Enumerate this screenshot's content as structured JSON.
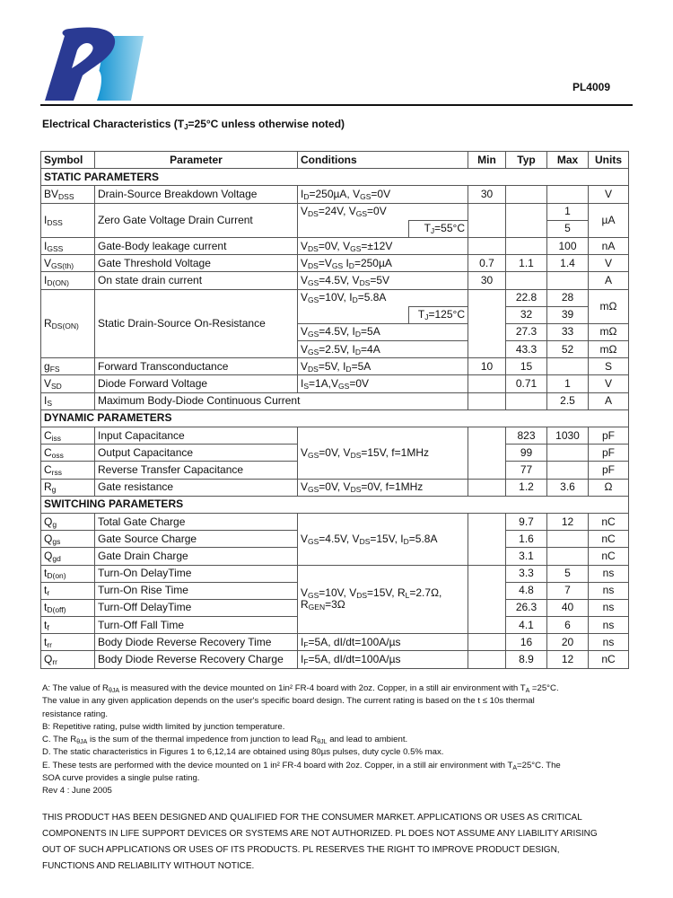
{
  "header": {
    "part_number": "PL4009",
    "logo_text": "PL",
    "brand_colors": {
      "dark": "#2a3a93",
      "light": "#1aa0d8"
    }
  },
  "title": {
    "pre": "Electrical Characteristics (T",
    "sub": "J",
    "post": "=25°C unless otherwise noted)"
  },
  "table": {
    "headers": {
      "symbol": "Symbol",
      "parameter": "Parameter",
      "conditions": "Conditions",
      "min": "Min",
      "typ": "Typ",
      "max": "Max",
      "units": "Units"
    },
    "sections": {
      "static": "STATIC PARAMETERS",
      "dynamic": "DYNAMIC PARAMETERS",
      "switching": "SWITCHING PARAMETERS"
    },
    "rows": {
      "bvdss": {
        "symbol": [
          "BV",
          "DSS"
        ],
        "parameter": "Drain-Source Breakdown Voltage",
        "conditions": [
          "I",
          "D",
          "=250µA, V",
          "GS",
          "=0V"
        ],
        "min": "30",
        "typ": "",
        "max": "",
        "units": "V"
      },
      "idss": {
        "symbol": [
          "I",
          "DSS"
        ],
        "parameter": "Zero Gate Voltage Drain Current",
        "conditions": [
          "V",
          "DS",
          "=24V, V",
          "GS",
          "=0V"
        ],
        "conditions_2": [
          "T",
          "J",
          "=55°C"
        ],
        "max": "1",
        "max_2": "5",
        "units": "µA"
      },
      "igss": {
        "symbol": [
          "I",
          "GSS"
        ],
        "parameter": "Gate-Body leakage current",
        "conditions": [
          "V",
          "DS",
          "=0V, V",
          "GS",
          "=±12V"
        ],
        "min": "",
        "typ": "",
        "max": "100",
        "units": "nA"
      },
      "vgsth": {
        "symbol": [
          "V",
          "GS(th)"
        ],
        "parameter": "Gate Threshold Voltage",
        "conditions": [
          "V",
          "DS",
          "=V",
          "GS",
          " I",
          "D",
          "=250µA"
        ],
        "min": "0.7",
        "typ": "1.1",
        "max": "1.4",
        "units": "V"
      },
      "idon": {
        "symbol": [
          "I",
          "D(ON)"
        ],
        "parameter": "On state drain current",
        "conditions": [
          "V",
          "GS",
          "=4.5V, V",
          "DS",
          "=5V"
        ],
        "min": "30",
        "typ": "",
        "max": "",
        "units": "A"
      },
      "rdson": {
        "symbol": [
          "R",
          "DS(ON)"
        ],
        "parameter": "Static Drain-Source On-Resistance",
        "conditions": [
          "V",
          "GS",
          "=10V, I",
          "D",
          "=5.8A"
        ],
        "conditions_2": [
          "T",
          "J",
          "=125°C"
        ],
        "conditions_3": [
          "V",
          "GS",
          "=4.5V, I",
          "D",
          "=5A"
        ],
        "conditions_4": [
          "V",
          "GS",
          "=2.5V, I",
          "D",
          "=4A"
        ],
        "typ": [
          "22.8",
          "32",
          "27.3",
          "43.3"
        ],
        "max": [
          "28",
          "39",
          "33",
          "52"
        ],
        "units": [
          "mΩ",
          "mΩ",
          "mΩ"
        ]
      },
      "gfs": {
        "symbol": [
          "g",
          "FS"
        ],
        "parameter": "Forward Transconductance",
        "conditions": [
          "V",
          "DS",
          "=5V, I",
          "D",
          "=5A"
        ],
        "min": "10",
        "typ": "15",
        "max": "",
        "units": "S"
      },
      "vsd": {
        "symbol": [
          "V",
          "SD"
        ],
        "parameter": "Diode Forward Voltage",
        "conditions": [
          "I",
          "S",
          "=1A,V",
          "GS",
          "=0V"
        ],
        "min": "",
        "typ": "0.71",
        "max": "1",
        "units": "V"
      },
      "is": {
        "symbol": [
          "I",
          "S"
        ],
        "parameter": "Maximum Body-Diode Continuous Current",
        "min": "",
        "typ": "",
        "max": "2.5",
        "units": "A"
      },
      "ciss": {
        "symbol": [
          "C",
          "iss"
        ],
        "parameter": "Input Capacitance",
        "typ": "823",
        "max": "1030",
        "units": "pF"
      },
      "coss": {
        "symbol": [
          "C",
          "oss"
        ],
        "parameter": "Output Capacitance",
        "typ": "99",
        "max": "",
        "units": "pF"
      },
      "crss": {
        "symbol": [
          "C",
          "rss"
        ],
        "parameter": "Reverse Transfer Capacitance",
        "typ": "77",
        "max": "",
        "units": "pF"
      },
      "cap_conditions": [
        "V",
        "GS",
        "=0V, V",
        "DS",
        "=15V, f=1MHz"
      ],
      "rg": {
        "symbol": [
          "R",
          "g"
        ],
        "parameter": "Gate resistance",
        "conditions": [
          "V",
          "GS",
          "=0V, V",
          "DS",
          "=0V, f=1MHz"
        ],
        "min": "",
        "typ": "1.2",
        "max": "3.6",
        "units": "Ω"
      },
      "qg": {
        "symbol": [
          "Q",
          "g"
        ],
        "parameter": "Total Gate Charge",
        "typ": "9.7",
        "max": "12",
        "units": "nC"
      },
      "qgs": {
        "symbol": [
          "Q",
          "gs"
        ],
        "parameter": "Gate Source Charge",
        "typ": "1.6",
        "max": "",
        "units": "nC"
      },
      "qgd": {
        "symbol": [
          "Q",
          "gd"
        ],
        "parameter": "Gate Drain Charge",
        "typ": "3.1",
        "max": "",
        "units": "nC"
      },
      "charge_conditions": [
        "V",
        "GS",
        "=4.5V, V",
        "DS",
        "=15V, I",
        "D",
        "=5.8A"
      ],
      "tdon": {
        "symbol": [
          "t",
          "D(on)"
        ],
        "parameter": "Turn-On DelayTime",
        "typ": "3.3",
        "max": "5",
        "units": "ns"
      },
      "tr": {
        "symbol": [
          "t",
          "r"
        ],
        "parameter": "Turn-On Rise Time",
        "typ": "4.8",
        "max": "7",
        "units": "ns"
      },
      "tdoff": {
        "symbol": [
          "t",
          "D(off)"
        ],
        "parameter": "Turn-Off DelayTime",
        "typ": "26.3",
        "max": "40",
        "units": "ns"
      },
      "tf": {
        "symbol": [
          "t",
          "f"
        ],
        "parameter": "Turn-Off Fall Time",
        "typ": "4.1",
        "max": "6",
        "units": "ns"
      },
      "switch_conditions": [
        "V",
        "GS",
        "=10V, V",
        "DS",
        "=15V, R",
        "L",
        "=2.7Ω,"
      ],
      "switch_conditions_2": [
        "R",
        "GEN",
        "=3Ω"
      ],
      "trr": {
        "symbol": [
          "t",
          "rr"
        ],
        "parameter": "Body Diode Reverse Recovery Time",
        "conditions": [
          "I",
          "F",
          "=5A, dI/dt=100A/µs"
        ],
        "typ": "16",
        "max": "20",
        "units": "ns"
      },
      "qrr": {
        "symbol": [
          "Q",
          "rr"
        ],
        "parameter": "Body Diode Reverse Recovery Charge",
        "conditions": [
          "I",
          "F",
          "=5A, dI/dt=100A/µs"
        ],
        "typ": "8.9",
        "max": "12",
        "units": "nC"
      }
    }
  },
  "notes": {
    "a": [
      "A: The value of R",
      "θJA",
      " is measured with the device mounted on 1in² FR-4 board with 2oz. Copper, in a still air environment with T",
      "A",
      " =25°C."
    ],
    "a2": "The value in any  given application depends on the user's specific board design. The current rating is based on the t ≤ 10s thermal",
    "a3": "resistance rating.",
    "b": "B: Repetitive rating, pulse width limited by junction temperature.",
    "c": [
      "C. The R",
      "θJA",
      " is the sum of the thermal impedence from junction to lead R",
      "θJL",
      " and lead to ambient."
    ],
    "d": "D. The static characteristics in Figures 1 to 6,12,14 are obtained using 80µs pulses, duty cycle 0.5% max.",
    "e": [
      "E. These tests are performed with the device mounted on 1 in² FR-4 board with 2oz. Copper, in a still air environment with T",
      "A",
      "=25°C. The"
    ],
    "e2": "SOA curve provides a single pulse rating.",
    "rev": "Rev 4 : June 2005"
  },
  "disclaimer": [
    "THIS PRODUCT HAS BEEN DESIGNED AND QUALIFIED FOR THE CONSUMER MARKET. APPLICATIONS OR USES AS CRITICAL",
    "COMPONENTS IN LIFE SUPPORT DEVICES OR SYSTEMS ARE NOT AUTHORIZED. PL DOES NOT ASSUME ANY LIABILITY ARISING",
    "OUT OF SUCH APPLICATIONS OR USES OF ITS PRODUCTS.  PL RESERVES THE RIGHT TO IMPROVE PRODUCT DESIGN,",
    "FUNCTIONS AND RELIABILITY WITHOUT NOTICE."
  ]
}
